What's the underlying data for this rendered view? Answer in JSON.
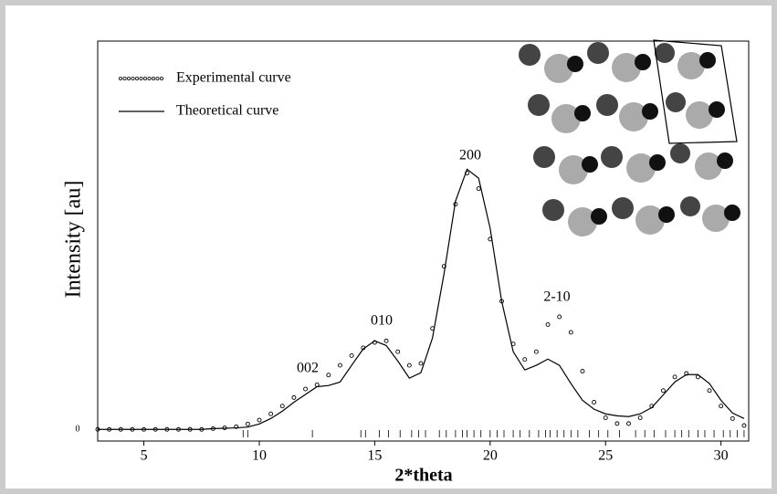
{
  "chart_data": {
    "type": "line",
    "xlabel": "2*theta",
    "ylabel": "Intensity [au]",
    "x": [
      3,
      3.5,
      4,
      4.5,
      5,
      5.5,
      6,
      6.5,
      7,
      7.5,
      8,
      8.5,
      9,
      9.5,
      10,
      10.5,
      11,
      11.5,
      12,
      12.5,
      13,
      13.5,
      14,
      14.5,
      15,
      15.5,
      16,
      16.5,
      17,
      17.5,
      18,
      18.5,
      19,
      19.5,
      20,
      20.5,
      21,
      21.5,
      22,
      22.5,
      23,
      23.5,
      24,
      24.5,
      25,
      25.5,
      26,
      26.5,
      27,
      27.5,
      28,
      28.5,
      29,
      29.5,
      30,
      30.5,
      31
    ],
    "series": [
      {
        "name": "Experimental curve",
        "color": "#000000",
        "style": "dots",
        "values": [
          0,
          0,
          0,
          0,
          0,
          0,
          0,
          0,
          0,
          0,
          0.2,
          0.4,
          0.7,
          1.4,
          2.4,
          4,
          6,
          8.2,
          10.4,
          11.5,
          14,
          16.5,
          19,
          21,
          22.4,
          22.8,
          20,
          16.5,
          17,
          26,
          42,
          58,
          66,
          62,
          49,
          33,
          22,
          18,
          20,
          27,
          29,
          25,
          15,
          7,
          3,
          1.5,
          1.5,
          3,
          6,
          10,
          13.5,
          14.4,
          13.5,
          10,
          6,
          2.8,
          1
        ]
      },
      {
        "name": "Theoretical curve",
        "color": "#000000",
        "style": "line",
        "values": [
          0,
          0,
          0,
          0,
          0,
          0,
          0,
          0,
          0,
          0,
          0.2,
          0.3,
          0.4,
          0.6,
          1.4,
          2.8,
          4.7,
          7,
          9,
          11,
          11.3,
          12.2,
          16.5,
          20.7,
          22.8,
          21.6,
          17.6,
          13.2,
          14.6,
          23.5,
          40,
          58.8,
          67,
          64.7,
          51.8,
          33,
          20,
          15.3,
          16.5,
          18.1,
          16.5,
          11.8,
          7.5,
          5.2,
          4,
          3.5,
          3.3,
          4,
          5.6,
          8.9,
          12.2,
          14.1,
          14.1,
          11.8,
          7.5,
          4.2,
          2.8
        ]
      }
    ],
    "annotations": [
      "002",
      "010",
      "200",
      "2-10"
    ],
    "reflections": [
      9.3,
      9.5,
      12.3,
      14.4,
      14.6,
      15.2,
      15.6,
      16.1,
      16.6,
      16.9,
      17.2,
      17.8,
      18.1,
      18.5,
      18.8,
      19.0,
      19.3,
      19.6,
      20.0,
      20.3,
      20.6,
      21.0,
      21.3,
      21.7,
      22.1,
      22.4,
      22.6,
      22.9,
      23.2,
      23.5,
      23.8,
      24.3,
      24.7,
      25.1,
      25.6,
      26.3,
      26.7,
      27.1,
      27.6,
      28.0,
      28.3,
      28.6,
      29.0,
      29.3,
      29.7,
      30.1,
      30.4,
      30.7,
      31.0
    ],
    "xlim": [
      3,
      31.2
    ],
    "ylim": [
      -3,
      100
    ],
    "xticks": [
      5,
      10,
      15,
      20,
      25,
      30
    ],
    "yticks": [
      0
    ],
    "grid": false,
    "legend": "upper left"
  }
}
